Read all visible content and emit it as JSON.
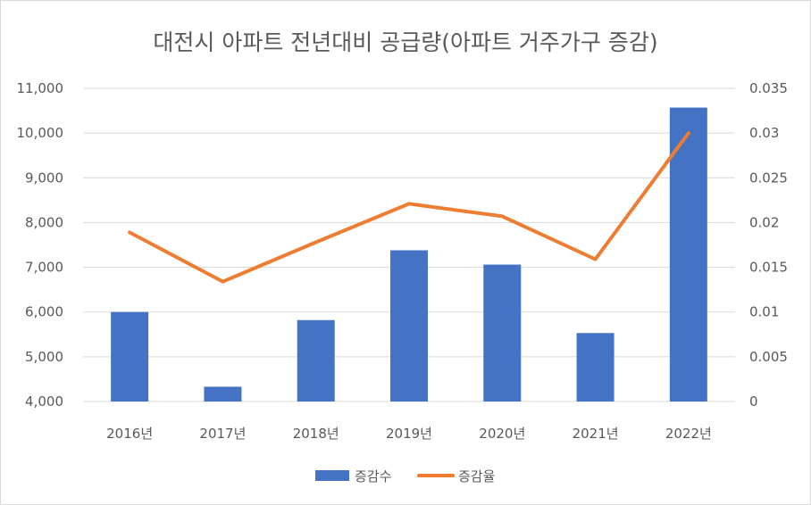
{
  "chart_data": {
    "type": "bar+line",
    "title": "대전시 아파트 전년대비 공급량(아파트 거주가구 증감)",
    "categories": [
      "2016년",
      "2017년",
      "2018년",
      "2019년",
      "2020년",
      "2021년",
      "2022년"
    ],
    "series": [
      {
        "name": "증감수",
        "type": "bar",
        "axis": "left",
        "color": "#4472c4",
        "values": [
          6000,
          4330,
          5820,
          7380,
          7060,
          5530,
          10570
        ]
      },
      {
        "name": "증감율",
        "type": "line",
        "axis": "right",
        "color": "#ed7d31",
        "values": [
          0.0189,
          0.0134,
          0.0178,
          0.0221,
          0.0207,
          0.0159,
          0.03
        ]
      }
    ],
    "left_axis": {
      "ylim": [
        4000,
        11000
      ],
      "ticks": [
        "4,000",
        "5,000",
        "6,000",
        "7,000",
        "8,000",
        "9,000",
        "10,000",
        "11,000"
      ]
    },
    "right_axis": {
      "ylim": [
        0,
        0.035
      ],
      "ticks": [
        "0",
        "0.005",
        "0.01",
        "0.015",
        "0.02",
        "0.025",
        "0.03",
        "0.035"
      ]
    },
    "grid": true,
    "legend": "bottom"
  }
}
